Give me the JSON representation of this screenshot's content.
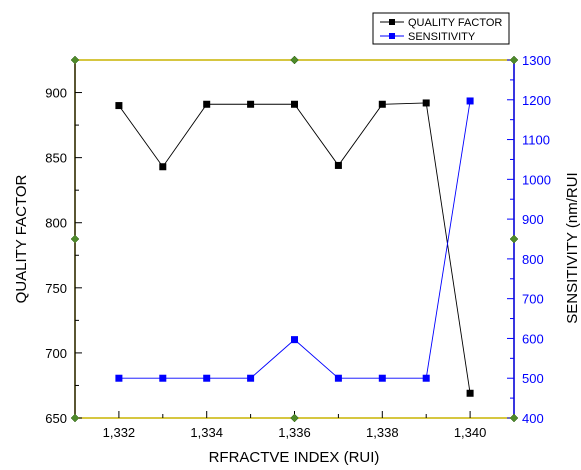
{
  "chart_data": {
    "type": "line",
    "x": [
      1.332,
      1.333,
      1.334,
      1.335,
      1.336,
      1.337,
      1.338,
      1.339,
      1.34
    ],
    "xlim": [
      1.331,
      1.341
    ],
    "xticks": [
      "1,332",
      "1,334",
      "1,336",
      "1,338",
      "1,340"
    ],
    "xlabel": "RFRACTVE INDEX (RUI)",
    "ylabel_left": "QUALITY FACTOR",
    "ylabel_right": "SENSITIVITY (nm/RUI",
    "ylim_left": [
      650,
      925
    ],
    "yticks_left": [
      "650",
      "700",
      "750",
      "800",
      "850",
      "900"
    ],
    "ylim_right": [
      400,
      1300
    ],
    "yticks_right": [
      "400",
      "500",
      "600",
      "700",
      "800",
      "900",
      "1000",
      "1100",
      "1200",
      "1300"
    ],
    "series": [
      {
        "name": "QUALITY FACTOR",
        "axis": "left",
        "color": "#000000",
        "values": [
          890,
          843,
          891,
          891,
          891,
          844,
          891,
          892,
          669
        ]
      },
      {
        "name": "SENSITIVITY",
        "axis": "right",
        "color": "#0000ff",
        "values": [
          500,
          500,
          500,
          500,
          597,
          500,
          500,
          500,
          1197
        ]
      }
    ],
    "legend_position": "top-right",
    "grid": false,
    "right_axis_color": "#0000ff",
    "frame_marker_color": "#4e8a2a"
  }
}
